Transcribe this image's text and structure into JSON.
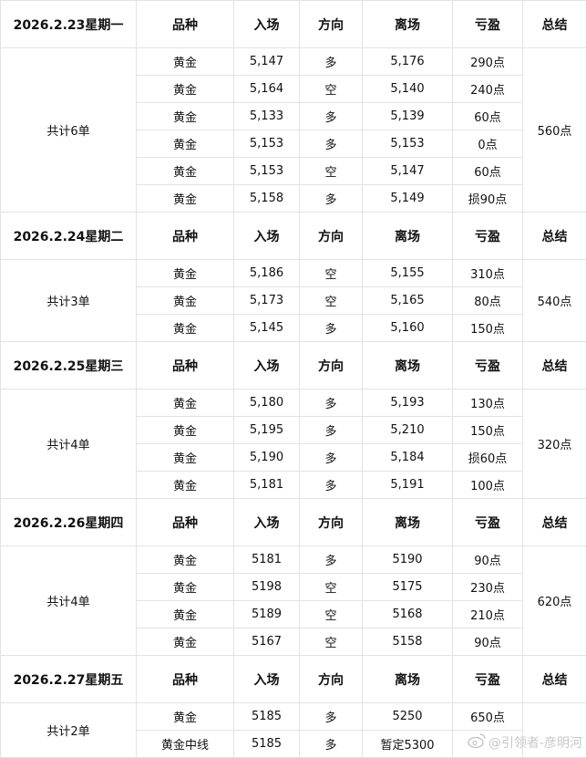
{
  "headers": [
    "品种",
    "入场",
    "方向",
    "离场",
    "亏盈",
    "总结"
  ],
  "days": [
    {
      "date": "2026.2.23星期一",
      "count": "共计6单",
      "summary": "560点",
      "trades": [
        [
          "黄金",
          "5,147",
          "多",
          "5,176",
          "290点"
        ],
        [
          "黄金",
          "5,164",
          "空",
          "5,140",
          "240点"
        ],
        [
          "黄金",
          "5,133",
          "多",
          "5,139",
          "60点"
        ],
        [
          "黄金",
          "5,153",
          "多",
          "5,153",
          "0点"
        ],
        [
          "黄金",
          "5,153",
          "空",
          "5,147",
          "60点"
        ],
        [
          "黄金",
          "5,158",
          "多",
          "5,149",
          "损90点"
        ]
      ]
    },
    {
      "date": "2026.2.24星期二",
      "count": "共计3单",
      "summary": "540点",
      "trades": [
        [
          "黄金",
          "5,186",
          "空",
          "5,155",
          "310点"
        ],
        [
          "黄金",
          "5,173",
          "空",
          "5,165",
          "80点"
        ],
        [
          "黄金",
          "5,145",
          "多",
          "5,160",
          "150点"
        ]
      ]
    },
    {
      "date": "2026.2.25星期三",
      "count": "共计4单",
      "summary": "320点",
      "trades": [
        [
          "黄金",
          "5,180",
          "多",
          "5,193",
          "130点"
        ],
        [
          "黄金",
          "5,195",
          "多",
          "5,210",
          "150点"
        ],
        [
          "黄金",
          "5,190",
          "多",
          "5,184",
          "损60点"
        ],
        [
          "黄金",
          "5,181",
          "多",
          "5,191",
          "100点"
        ]
      ]
    },
    {
      "date": "2026.2.26星期四",
      "count": "共计4单",
      "summary": "620点",
      "trades": [
        [
          "黄金",
          "5181",
          "多",
          "5190",
          "90点"
        ],
        [
          "黄金",
          "5198",
          "空",
          "5175",
          "230点"
        ],
        [
          "黄金",
          "5189",
          "空",
          "5168",
          "210点"
        ],
        [
          "黄金",
          "5167",
          "空",
          "5158",
          "90点"
        ]
      ]
    },
    {
      "date": "2026.2.27星期五",
      "count": "共计2单",
      "summary": "",
      "trades": [
        [
          "黄金",
          "5185",
          "多",
          "5250",
          "650点"
        ],
        [
          "黄金中线",
          "5185",
          "多",
          "暂定5300",
          ""
        ]
      ]
    }
  ],
  "watermark": "@引领者-彦明河",
  "watermark_icon": "weibo-icon"
}
